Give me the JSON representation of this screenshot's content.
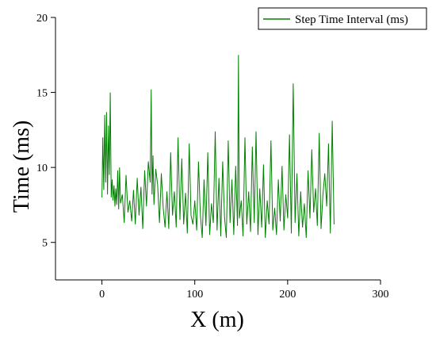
{
  "chart_data": {
    "type": "line",
    "xlabel": "X (m)",
    "ylabel": "Time (ms)",
    "xlim": [
      -50,
      300
    ],
    "ylim": [
      2.5,
      20
    ],
    "xticks": [
      0,
      100,
      200,
      300
    ],
    "yticks": [
      5,
      10,
      15,
      20
    ],
    "grid": false,
    "legend_position": "top-right",
    "series": [
      {
        "name": "Step Time Interval (ms)",
        "color": "#008000",
        "x": [
          0,
          1,
          2,
          3,
          4,
          5,
          6,
          7,
          8,
          9,
          10,
          11,
          12,
          13,
          14,
          15,
          16,
          17,
          18,
          19,
          20,
          22,
          24,
          26,
          28,
          30,
          32,
          34,
          36,
          38,
          40,
          42,
          44,
          46,
          48,
          50,
          52,
          53,
          54,
          55,
          56,
          58,
          60,
          62,
          64,
          66,
          68,
          70,
          72,
          74,
          76,
          78,
          80,
          82,
          84,
          86,
          88,
          90,
          92,
          94,
          96,
          98,
          100,
          102,
          104,
          106,
          108,
          110,
          112,
          114,
          116,
          118,
          120,
          122,
          124,
          126,
          128,
          130,
          132,
          134,
          136,
          138,
          140,
          142,
          144,
          146,
          147,
          148,
          150,
          152,
          154,
          156,
          158,
          160,
          162,
          164,
          166,
          168,
          170,
          172,
          174,
          176,
          178,
          180,
          182,
          184,
          186,
          188,
          190,
          192,
          194,
          196,
          198,
          200,
          202,
          204,
          206,
          208,
          210,
          212,
          214,
          216,
          218,
          220,
          222,
          224,
          226,
          228,
          230,
          232,
          234,
          236,
          238,
          240,
          242,
          244,
          246,
          248,
          250
        ],
        "y": [
          8.0,
          12.0,
          8.5,
          13.5,
          9.0,
          13.7,
          8.2,
          12.8,
          9.5,
          15.0,
          8.0,
          9.2,
          7.8,
          8.8,
          7.4,
          8.6,
          7.5,
          9.8,
          7.2,
          10.0,
          7.6,
          8.2,
          6.3,
          9.5,
          7.0,
          7.8,
          6.4,
          8.5,
          6.2,
          9.3,
          6.8,
          8.7,
          5.9,
          9.8,
          7.4,
          10.4,
          9.0,
          15.2,
          8.2,
          10.8,
          7.5,
          9.9,
          8.8,
          6.3,
          9.6,
          7.3,
          6.0,
          8.4,
          5.9,
          11.0,
          6.8,
          8.4,
          6.0,
          12.0,
          6.5,
          10.6,
          6.2,
          8.3,
          5.6,
          11.6,
          6.8,
          6.2,
          7.8,
          5.8,
          10.4,
          6.9,
          5.3,
          9.2,
          6.1,
          11.0,
          5.5,
          7.6,
          6.3,
          12.4,
          5.8,
          9.3,
          5.4,
          10.4,
          6.7,
          5.3,
          11.8,
          6.3,
          9.2,
          5.5,
          10.1,
          6.1,
          17.5,
          6.6,
          7.8,
          5.4,
          12.0,
          6.2,
          8.4,
          5.7,
          11.4,
          6.3,
          12.4,
          5.5,
          8.6,
          6.0,
          10.2,
          5.3,
          7.8,
          6.2,
          11.8,
          5.8,
          7.3,
          5.5,
          9.2,
          6.4,
          10.1,
          5.8,
          8.2,
          6.6,
          12.2,
          5.6,
          15.6,
          6.3,
          9.6,
          5.4,
          8.4,
          6.0,
          7.6,
          5.3,
          9.8,
          6.6,
          11.2,
          7.0,
          8.6,
          6.1,
          12.3,
          5.9,
          8.2,
          9.6,
          7.4,
          11.6,
          5.6,
          13.1,
          6.2
        ]
      }
    ]
  }
}
